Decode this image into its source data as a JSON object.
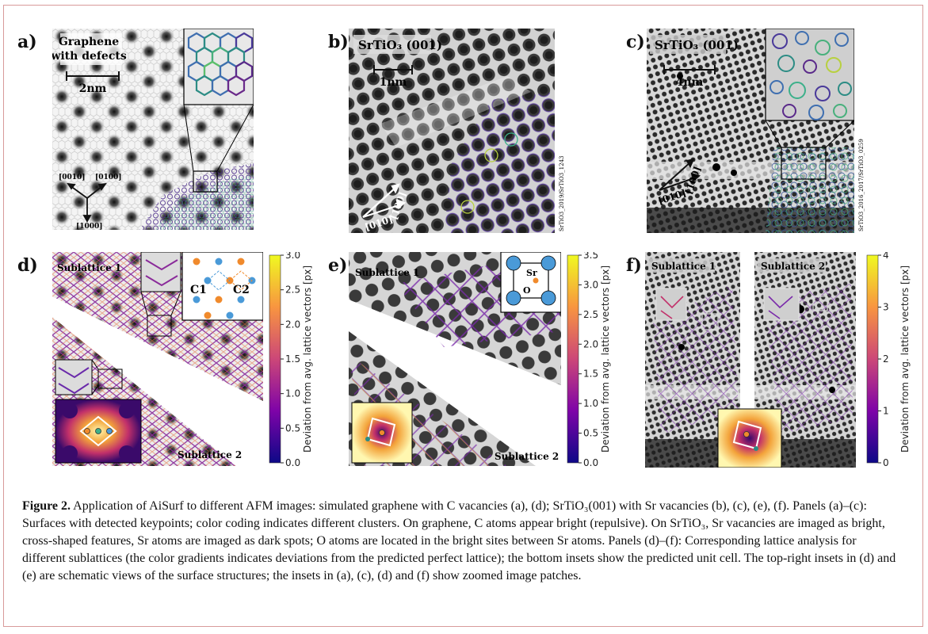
{
  "panels": {
    "a": {
      "letter": "a)",
      "title_line1": "Graphene",
      "title_line2": "with defects",
      "scale": "2nm",
      "dir1": "[0010]",
      "dir2": "[0100]",
      "dir3": "[1000]"
    },
    "b": {
      "letter": "b)",
      "title": "SrTiO₃ (001)",
      "scale": "1nm",
      "dir1": "[010]",
      "dir2": "[100]",
      "side_label": "SrTiO3_2019/SrTiO3_1243"
    },
    "c": {
      "letter": "c)",
      "title": "SrTiO₃ (001)",
      "scale": "4nm",
      "dir1": "[010]",
      "dir2": "[100]",
      "side_label": "SrTiO3_2016_2017/SrTiO3_0259"
    },
    "d": {
      "letter": "d)",
      "sub1": "Sublattice 1",
      "sub2": "Sublattice 2",
      "inset_c1": "C1",
      "inset_c2": "C2"
    },
    "e": {
      "letter": "e)",
      "sub1": "Sublattice 1",
      "sub2": "Sublattice 2",
      "inset_sr": "Sr",
      "inset_o": "O"
    },
    "f": {
      "letter": "f)",
      "sub1": "Sublattice 1",
      "sub2": "Sublattice 2"
    }
  },
  "colorbars": {
    "label": "Deviation from avg. lattice vectors [px]",
    "d_ticks": [
      "3.0",
      "2.5",
      "2.0",
      "1.5",
      "1.0",
      "0.5",
      "0.0"
    ],
    "e_ticks": [
      "3.5",
      "3.0",
      "2.5",
      "2.0",
      "1.5",
      "1.0",
      "0.5",
      "0.0"
    ],
    "f_ticks": [
      "4",
      "3",
      "2",
      "1",
      "0"
    ]
  },
  "caption": {
    "label": "Figure 2.",
    "text": " Application of AiSurf to different AFM images: simulated graphene with C vacancies (a), (d); SrTiO₃(001) with Sr vacancies (b), (c), (e), (f). Panels (a)–(c): Surfaces with detected keypoints; color coding indicates different clusters. On graphene, C atoms appear bright (repulsive). On SrTiO₃, Sr vacancies are imaged as bright, cross-shaped features, Sr atoms are imaged as dark spots; O atoms are located in the bright sites between Sr atoms. Panels (d)–(f): Corresponding lattice analysis for different sublattices (the color gradients indicates deviations from the predicted perfect lattice); the bottom insets show the predicted unit cell. The top-right insets in (d) and (e) are schematic views of the surface structures; the insets in (a), (c), (d) and (f) show zoomed image patches."
  },
  "colors": {
    "frame": "#d89a9a",
    "viridis_start": "#440154",
    "viridis_end": "#fde725"
  }
}
